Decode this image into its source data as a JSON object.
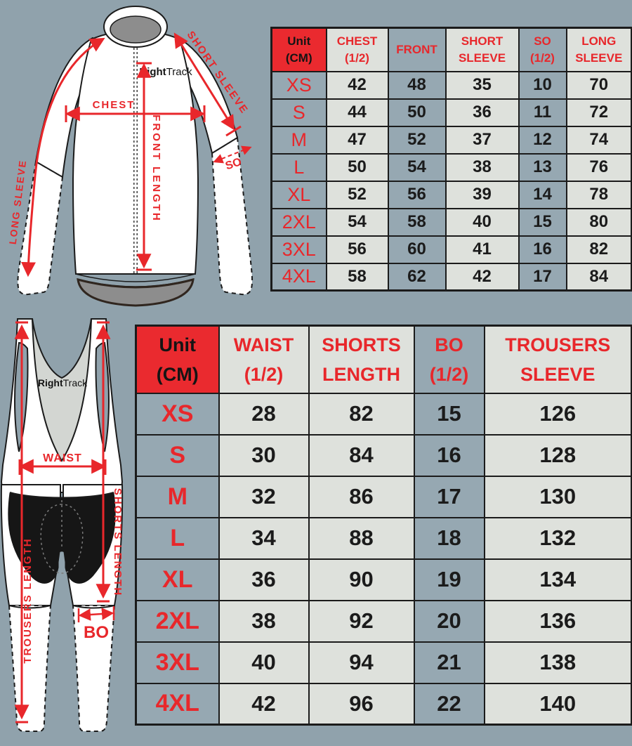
{
  "brand": {
    "logo_bold": "Right",
    "logo_light": "Track"
  },
  "colors": {
    "background": "#90a2ac",
    "cell_light": "#dee1dc",
    "cell_gray": "#96a8b2",
    "header_red_bg": "#ea2a2f",
    "accent_red": "#e8272b",
    "ink": "#1b1b1b"
  },
  "jersey_diagram": {
    "labels": {
      "chest": "CHEST",
      "front_length": "FRONT LENGTH",
      "short_sleeve": "SHORT SLEEVE",
      "so": "SO",
      "long_sleeve": "LONG SLEEVE"
    }
  },
  "bib_diagram": {
    "labels": {
      "waist": "WAIST",
      "shorts_length": "SHORTS LENGTH",
      "bo": "BO",
      "trousers_length": "TROUSERS LENGTH"
    }
  },
  "chart_data": [
    {
      "type": "table",
      "title": "Long sleeve jersey size chart (CM)",
      "unit_label": [
        "Unit",
        "(CM)"
      ],
      "columns": [
        {
          "key": "chest",
          "lines": [
            "CHEST",
            "(1/2)"
          ]
        },
        {
          "key": "front",
          "lines": [
            "FRONT"
          ]
        },
        {
          "key": "short-sleeve",
          "lines": [
            "SHORT",
            "SLEEVE"
          ]
        },
        {
          "key": "so",
          "lines": [
            "SO",
            "(1/2)"
          ]
        },
        {
          "key": "long-sleeve",
          "lines": [
            "LONG",
            "SLEEVE"
          ]
        }
      ],
      "rows": [
        {
          "size": "XS",
          "values": [
            42,
            48,
            35,
            10,
            70
          ]
        },
        {
          "size": "S",
          "values": [
            44,
            50,
            36,
            11,
            72
          ]
        },
        {
          "size": "M",
          "values": [
            47,
            52,
            37,
            12,
            74
          ]
        },
        {
          "size": "L",
          "values": [
            50,
            54,
            38,
            13,
            76
          ]
        },
        {
          "size": "XL",
          "values": [
            52,
            56,
            39,
            14,
            78
          ]
        },
        {
          "size": "2XL",
          "values": [
            54,
            58,
            40,
            15,
            80
          ]
        },
        {
          "size": "3XL",
          "values": [
            56,
            60,
            41,
            16,
            82
          ]
        },
        {
          "size": "4XL",
          "values": [
            58,
            62,
            42,
            17,
            84
          ]
        }
      ]
    },
    {
      "type": "table",
      "title": "Bib trousers size chart (CM)",
      "unit_label": [
        "Unit",
        "(CM)"
      ],
      "columns": [
        {
          "key": "waist",
          "lines": [
            "WAIST",
            "(1/2)"
          ]
        },
        {
          "key": "shorts-length",
          "lines": [
            "SHORTS",
            "LENGTH"
          ]
        },
        {
          "key": "bo",
          "lines": [
            "BO",
            "(1/2)"
          ]
        },
        {
          "key": "trousers-sleeve",
          "lines": [
            "TROUSERS",
            "SLEEVE"
          ]
        }
      ],
      "rows": [
        {
          "size": "XS",
          "values": [
            28,
            82,
            15,
            126
          ]
        },
        {
          "size": "S",
          "values": [
            30,
            84,
            16,
            128
          ]
        },
        {
          "size": "M",
          "values": [
            32,
            86,
            17,
            130
          ]
        },
        {
          "size": "L",
          "values": [
            34,
            88,
            18,
            132
          ]
        },
        {
          "size": "XL",
          "values": [
            36,
            90,
            19,
            134
          ]
        },
        {
          "size": "2XL",
          "values": [
            38,
            92,
            20,
            136
          ]
        },
        {
          "size": "3XL",
          "values": [
            40,
            94,
            21,
            138
          ]
        },
        {
          "size": "4XL",
          "values": [
            42,
            96,
            22,
            140
          ]
        }
      ]
    }
  ]
}
